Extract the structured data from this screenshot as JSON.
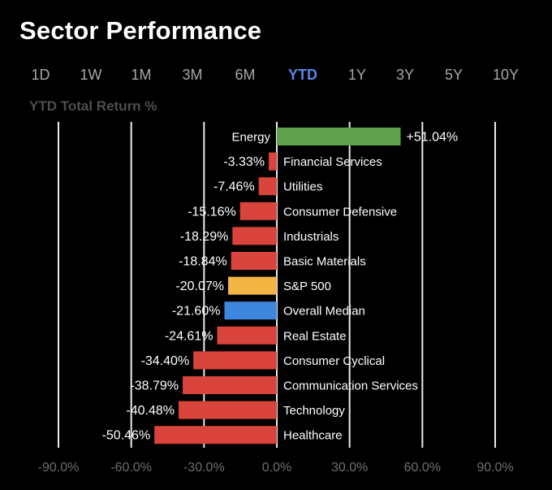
{
  "header": {
    "title": "Sector Performance",
    "tabs": [
      {
        "label": "1D",
        "active": false
      },
      {
        "label": "1W",
        "active": false
      },
      {
        "label": "1M",
        "active": false
      },
      {
        "label": "3M",
        "active": false
      },
      {
        "label": "6M",
        "active": false
      },
      {
        "label": "YTD",
        "active": true
      },
      {
        "label": "1Y",
        "active": false
      },
      {
        "label": "3Y",
        "active": false
      },
      {
        "label": "5Y",
        "active": false
      },
      {
        "label": "10Y",
        "active": false
      }
    ]
  },
  "chart_data": {
    "type": "bar",
    "orientation": "horizontal",
    "title": "YTD Total Return %",
    "xlim": [
      -90,
      90
    ],
    "xticks": [
      -90,
      -60,
      -30,
      0,
      30,
      60,
      90
    ],
    "xtick_labels": [
      "-90.0%",
      "-60.0%",
      "-30.0%",
      "0.0%",
      "30.0%",
      "60.0%",
      "90.0%"
    ],
    "grid": true,
    "categories": [
      "Energy",
      "Financial Services",
      "Utilities",
      "Consumer Defensive",
      "Industrials",
      "Basic Materials",
      "S&P 500",
      "Overall Median",
      "Real Estate",
      "Consumer Cyclical",
      "Communication Services",
      "Technology",
      "Healthcare"
    ],
    "values": [
      51.04,
      -3.33,
      -7.46,
      -15.16,
      -18.29,
      -18.84,
      -20.07,
      -21.6,
      -24.61,
      -34.4,
      -38.79,
      -40.48,
      -50.46
    ],
    "value_labels": [
      "+51.04%",
      "-3.33%",
      "-7.46%",
      "-15.16%",
      "-18.29%",
      "-18.84%",
      "-20.07%",
      "-21.60%",
      "-24.61%",
      "-34.40%",
      "-38.79%",
      "-40.48%",
      "-50.46%"
    ],
    "colors": [
      "#5ea14a",
      "#d9443c",
      "#d9443c",
      "#d9443c",
      "#d9443c",
      "#d9443c",
      "#f3b544",
      "#3f87de",
      "#d9443c",
      "#d9443c",
      "#d9443c",
      "#d9443c",
      "#d9443c"
    ],
    "background": "#000000",
    "active_tab_color": "#5b86e5"
  }
}
